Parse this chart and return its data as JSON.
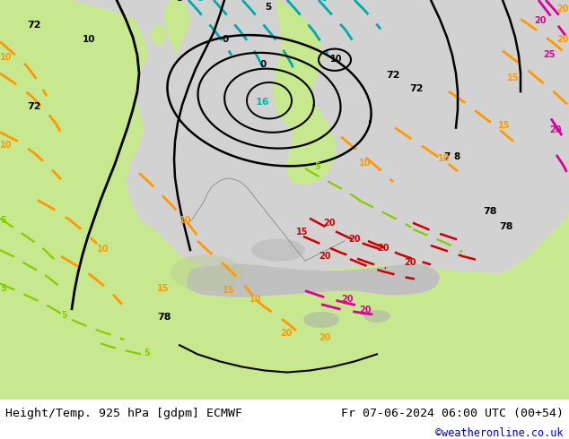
{
  "title_left": "Height/Temp. 925 hPa [gdpm] ECMWF",
  "title_right": "Fr 07-06-2024 06:00 UTC (00+54)",
  "credit": "©weatheronline.co.uk",
  "figsize": [
    6.34,
    4.9
  ],
  "dpi": 100,
  "bg_color": "#d8d8d8",
  "land_color": "#c8e8a0",
  "ocean_color": "#d0d0d0",
  "mountain_color": "#b0b0b0",
  "title_fontsize": 9.5,
  "credit_fontsize": 8.5,
  "footer_bg": "#d8d8d8"
}
